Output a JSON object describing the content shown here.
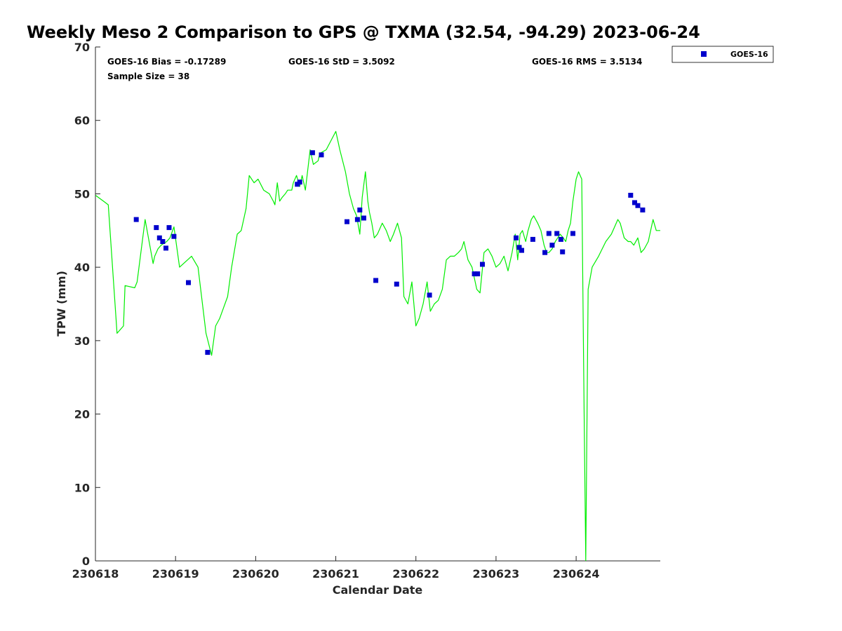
{
  "chart_data": {
    "type": "line",
    "title": "Weekly Meso 2 Comparison to GPS @ TXMA (32.54, -94.29) 2023-06-24",
    "xlabel": "Calendar Date",
    "ylabel": "TPW (mm)",
    "xlim": [
      230618,
      230625.05
    ],
    "ylim": [
      0,
      70
    ],
    "x_ticks": [
      {
        "value": 230618,
        "label": "230618"
      },
      {
        "value": 230619,
        "label": "230619"
      },
      {
        "value": 230620,
        "label": "230620"
      },
      {
        "value": 230621,
        "label": "230621"
      },
      {
        "value": 230622,
        "label": "230622"
      },
      {
        "value": 230623,
        "label": "230623"
      },
      {
        "value": 230624,
        "label": "230624"
      }
    ],
    "y_ticks": [
      {
        "value": 0,
        "label": "0"
      },
      {
        "value": 10,
        "label": "10"
      },
      {
        "value": 20,
        "label": "20"
      },
      {
        "value": 30,
        "label": "30"
      },
      {
        "value": 40,
        "label": "40"
      },
      {
        "value": 50,
        "label": "50"
      },
      {
        "value": 60,
        "label": "60"
      },
      {
        "value": 70,
        "label": "70"
      }
    ],
    "grid": false,
    "legend_position": "top-right, outside plot",
    "stats": {
      "bias": "GOES-16 Bias = -0.17289",
      "std": "GOES-16 StD = 3.5092",
      "rms": "GOES-16 RMS = 3.5134",
      "sample_size": "Sample Size = 38"
    },
    "series": [
      {
        "style": "line",
        "color": "#00ee00",
        "x": [
          230618.0,
          230618.1,
          230618.16,
          230618.27,
          230618.35,
          230618.37,
          230618.49,
          230618.52,
          230618.62,
          230618.72,
          230618.74,
          230618.78,
          230618.82,
          230618.89,
          230618.93,
          230618.98,
          230619.05,
          230619.15,
          230619.2,
          230619.28,
          230619.38,
          230619.45,
          230619.5,
          230619.55,
          230619.6,
          230619.65,
          230619.7,
          230619.77,
          230619.82,
          230619.88,
          230619.92,
          230619.98,
          230620.03,
          230620.1,
          230620.17,
          230620.22,
          230620.24,
          230620.27,
          230620.3,
          230620.33,
          230620.37,
          230620.4,
          230620.45,
          230620.47,
          230620.51,
          230620.55,
          230620.58,
          230620.62,
          230620.68,
          230620.72,
          230620.78,
          230620.8,
          230620.88,
          230621.0,
          230621.05,
          230621.12,
          230621.17,
          230621.22,
          230621.26,
          230621.3,
          230621.33,
          230621.37,
          230621.4,
          230621.42,
          230621.45,
          230621.48,
          230621.52,
          230621.58,
          230621.63,
          230621.68,
          230621.72,
          230621.77,
          230621.82,
          230621.85,
          230621.9,
          230621.95,
          230622.0,
          230622.04,
          230622.09,
          230622.14,
          230622.18,
          230622.23,
          230622.28,
          230622.33,
          230622.38,
          230622.43,
          230622.48,
          230622.53,
          230622.57,
          230622.6,
          230622.65,
          230622.7,
          230622.76,
          230622.8,
          230622.85,
          230622.9,
          230622.95,
          230623.0,
          230623.05,
          230623.1,
          230623.15,
          230623.2,
          230623.24,
          230623.27,
          230623.3,
          230623.33,
          230623.37,
          230623.4,
          230623.44,
          230623.47,
          230623.52,
          230623.56,
          230623.6,
          230623.63,
          230623.66,
          230623.7,
          230623.74,
          230623.77,
          230623.8,
          230623.84,
          230623.87,
          230623.9,
          230623.93,
          230623.96,
          230624.0,
          230624.03,
          230624.07,
          230624.1,
          230624.12,
          230624.15,
          230624.2,
          230624.28,
          230624.37,
          230624.44,
          230624.48,
          230624.52,
          230624.55,
          230624.6,
          230624.65,
          230624.68,
          230624.72,
          230624.77,
          230624.81,
          230624.85,
          230624.9,
          230624.96,
          230625.0,
          230625.05
        ],
        "y": [
          49.8,
          49.0,
          48.5,
          31.0,
          32.0,
          37.5,
          37.2,
          38.0,
          46.5,
          40.5,
          41.5,
          42.5,
          43.0,
          43.5,
          44.0,
          45.5,
          40.0,
          41.0,
          41.5,
          40.0,
          31.0,
          28.0,
          32.0,
          33.0,
          34.5,
          36.0,
          40.0,
          44.5,
          45.0,
          48.0,
          52.5,
          51.5,
          52.0,
          50.5,
          50.0,
          49.0,
          48.5,
          51.5,
          49.0,
          49.5,
          50.0,
          50.5,
          50.5,
          51.5,
          52.5,
          51.0,
          52.5,
          50.5,
          56.0,
          54.0,
          54.5,
          55.5,
          56.0,
          58.5,
          56.0,
          53.0,
          50.0,
          48.0,
          47.0,
          44.5,
          49.5,
          53.0,
          49.0,
          47.5,
          46.0,
          44.0,
          44.5,
          46.0,
          45.0,
          43.5,
          44.5,
          46.0,
          44.0,
          36.0,
          35.0,
          38.0,
          32.0,
          33.0,
          35.0,
          38.0,
          34.0,
          35.0,
          35.5,
          37.0,
          41.0,
          41.5,
          41.5,
          42.0,
          42.5,
          43.5,
          41.0,
          40.0,
          37.0,
          36.5,
          42.0,
          42.5,
          41.5,
          40.0,
          40.5,
          41.5,
          39.5,
          42.0,
          44.5,
          41.0,
          44.5,
          45.0,
          43.5,
          45.0,
          46.5,
          47.0,
          46.0,
          45.0,
          43.0,
          42.0,
          42.0,
          42.5,
          43.5,
          44.0,
          44.5,
          44.0,
          43.5,
          45.0,
          46.0,
          49.0,
          52.0,
          53.0,
          52.0,
          20.0,
          0.0,
          37.0,
          40.0,
          41.5,
          43.5,
          44.5,
          45.5,
          46.5,
          46.0,
          44.0,
          43.5,
          43.5,
          43.0,
          44.0,
          42.0,
          42.5,
          43.5,
          46.5,
          45.0,
          45.0
        ]
      },
      {
        "name": "GOES-16",
        "style": "marker",
        "color": "#0000cc",
        "x": [
          230618.51,
          230618.76,
          230618.8,
          230618.84,
          230618.88,
          230618.92,
          230618.98,
          230619.16,
          230619.4,
          230620.52,
          230620.55,
          230620.71,
          230620.82,
          230621.14,
          230621.27,
          230621.3,
          230621.35,
          230621.5,
          230621.76,
          230622.17,
          230622.73,
          230622.77,
          230622.83,
          230623.25,
          230623.29,
          230623.32,
          230623.46,
          230623.61,
          230623.66,
          230623.7,
          230623.76,
          230623.81,
          230623.83,
          230623.96,
          230624.68,
          230624.73,
          230624.77,
          230624.83
        ],
        "y": [
          46.5,
          45.4,
          44.0,
          43.5,
          42.6,
          45.4,
          44.2,
          37.9,
          28.4,
          51.3,
          51.6,
          55.6,
          55.3,
          46.2,
          46.5,
          47.8,
          46.7,
          38.2,
          37.7,
          36.2,
          39.1,
          39.1,
          40.4,
          44.0,
          42.7,
          42.3,
          43.8,
          42.0,
          44.6,
          43.0,
          44.6,
          43.8,
          42.1,
          44.6,
          49.8,
          48.8,
          48.4,
          47.8
        ]
      }
    ]
  },
  "legend": {
    "label": "GOES-16",
    "marker_color": "#0000cc"
  },
  "colors": {
    "line": "#00ee00",
    "marker": "#0000cc",
    "axis": "#262626"
  }
}
